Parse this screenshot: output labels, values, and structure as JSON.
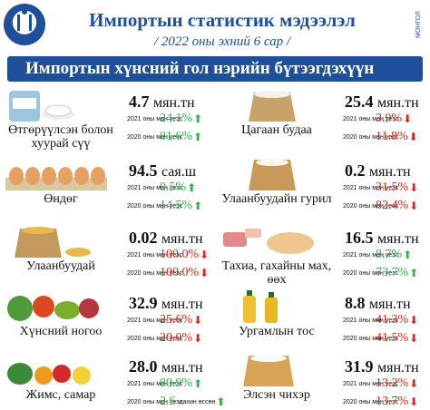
{
  "header": {
    "title": "Импортын статистик мэдээлэл",
    "subtitle": "/ 2022 оны эхний 6 сар /",
    "side_text": "МОНГОЛ"
  },
  "banner": {
    "title": "Импортын хүнсний гол нэрийн бүтээгдэхүүн"
  },
  "colors": {
    "brand": "#1d4f9a",
    "up": "#2db34a",
    "down": "#d9261c"
  },
  "items": [
    {
      "name": "Өтгөрүүлсэн болон хуурай сүү",
      "icon": "milk-powder-icon",
      "value": "4.7",
      "unit": "мян.тн",
      "row1": {
        "label": "2021 оны мөн үеэс",
        "pct": "24.1%",
        "dir": "up"
      },
      "row2": {
        "label": "2020 оны мөн үеэс",
        "pct": "81.6%",
        "dir": "up"
      }
    },
    {
      "name": "Цагаан будаа",
      "icon": "rice-sack-icon",
      "value": "25.4",
      "unit": "мян.тн",
      "row1": {
        "label": "2021 оны мөн үеэс",
        "pct": "3.9%",
        "dir": "down"
      },
      "row2": {
        "label": "2020 оны мөн үеэс",
        "pct": "11.8%",
        "dir": "down"
      }
    },
    {
      "name": "Өндөг",
      "icon": "eggs-icon",
      "value": "94.5",
      "unit": "сая.ш",
      "row1": {
        "label": "2021 оны мөн үеэс",
        "pct": "0.5%",
        "dir": "up"
      },
      "row2": {
        "label": "2020 оны мөн үеэс",
        "pct": "14.5%",
        "dir": "up"
      }
    },
    {
      "name": "Улаанбуудайн гурил",
      "icon": "flour-sack-icon",
      "value": "0.2",
      "unit": "мян.тн",
      "row1": {
        "label": "2021 оны мөн үеэс",
        "pct": "31.5%",
        "dir": "down"
      },
      "row2": {
        "label": "2020 оны мөн үеэс",
        "pct": "82.4%",
        "dir": "down"
      }
    },
    {
      "name": "Улаанбуудай",
      "icon": "wheat-sack-icon",
      "value": "0.02",
      "unit": "мян.тн",
      "row1": {
        "label": "2021 оны мөн үеэс",
        "pct": "100.0%",
        "dir": "down"
      },
      "row2": {
        "label": "2020 оны мөн үеэс",
        "pct": "100.0%",
        "dir": "down"
      }
    },
    {
      "name": "Тахиа, гахайны мах, өөх",
      "icon": "meat-icon",
      "value": "16.5",
      "unit": "мян.тн",
      "row1": {
        "label": "2021 оны мөн үеэс",
        "pct": "8.7%",
        "dir": "up"
      },
      "row2": {
        "label": "2020 оны мөн үеэс",
        "pct": "73.7%",
        "dir": "up"
      }
    },
    {
      "name": "Хүнсний ногоо",
      "icon": "vegetables-icon",
      "value": "32.9",
      "unit": "мян.тн",
      "row1": {
        "label": "2021 оны мөн үеэс",
        "pct": "25.6%",
        "dir": "down"
      },
      "row2": {
        "label": "2020 оны мөн үеэс",
        "pct": "20.0%",
        "dir": "down"
      }
    },
    {
      "name": "Ургамлын тос",
      "icon": "oil-bottles-icon",
      "value": "8.8",
      "unit": "мян.тн",
      "row1": {
        "label": "2021 оны мөн үеэс",
        "pct": "41.3%",
        "dir": "down"
      },
      "row2": {
        "label": "2020 оны мөн үеэс",
        "pct": "41.5%",
        "dir": "down"
      }
    },
    {
      "name": "Жимс, самар",
      "icon": "fruits-icon",
      "value": "28.0",
      "unit": "мян.тн",
      "row1": {
        "label": "2021 оны мөн үеэс",
        "pct": "80.9%",
        "dir": "up"
      },
      "row2": {
        "label": "2020 оны мөн үеэс",
        "pct": "2.6",
        "dir": "up",
        "note": "дахин өссөн"
      }
    },
    {
      "name": "Элсэн чихэр",
      "icon": "sugar-sack-icon",
      "value": "31.9",
      "unit": "мян.тн",
      "row1": {
        "label": "2021 оны мөн үеэс",
        "pct": "13.2%",
        "dir": "down"
      },
      "row2": {
        "label": "2020 оны мөн үеэс",
        "pct": "13.7%",
        "dir": "down"
      }
    }
  ]
}
